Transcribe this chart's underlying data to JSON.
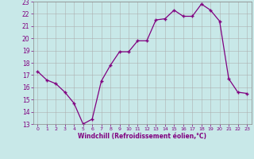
{
  "x": [
    0,
    1,
    2,
    3,
    4,
    5,
    6,
    7,
    8,
    9,
    10,
    11,
    12,
    13,
    14,
    15,
    16,
    17,
    18,
    19,
    20,
    21,
    22,
    23
  ],
  "y": [
    17.3,
    16.6,
    16.3,
    15.6,
    14.7,
    13.0,
    13.4,
    16.5,
    17.8,
    18.9,
    18.9,
    19.8,
    19.8,
    21.5,
    21.6,
    22.3,
    21.8,
    21.8,
    22.8,
    22.3,
    21.4,
    16.7,
    15.6,
    15.5
  ],
  "line_color": "#800080",
  "marker": "+",
  "marker_color": "#800080",
  "bg_color": "#c8e8e8",
  "grid_color": "#aaaaaa",
  "xlabel": "Windchill (Refroidissement éolien,°C)",
  "xlabel_color": "#800080",
  "tick_color": "#800080",
  "ylim": [
    13,
    23
  ],
  "xlim": [
    -0.5,
    23.5
  ],
  "yticks": [
    13,
    14,
    15,
    16,
    17,
    18,
    19,
    20,
    21,
    22,
    23
  ],
  "xticks": [
    0,
    1,
    2,
    3,
    4,
    5,
    6,
    7,
    8,
    9,
    10,
    11,
    12,
    13,
    14,
    15,
    16,
    17,
    18,
    19,
    20,
    21,
    22,
    23
  ]
}
